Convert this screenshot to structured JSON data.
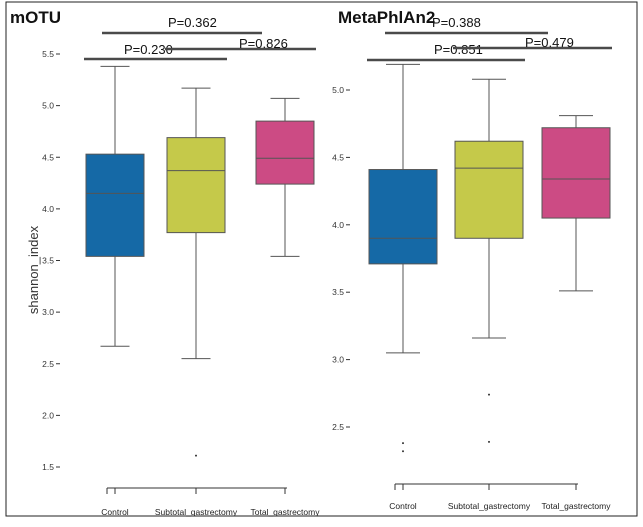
{
  "colors": {
    "control": "#1569a6",
    "subtotal": "#c5c94a",
    "total": "#cc4b84",
    "whisker": "#555555",
    "bracket": "#4a4a4a",
    "frame": "#222222"
  },
  "chart_data": [
    {
      "type": "box",
      "panel_title": "mOTU",
      "ylabel": "shannon_index",
      "ylim": [
        1.5,
        5.5
      ],
      "yticks": [
        "1.5",
        "2.0",
        "2.5",
        "3.0",
        "3.5",
        "4.0",
        "4.5",
        "5.0",
        "5.5"
      ],
      "categories": [
        "Control",
        "Subtotal_gastrectomy",
        "Total_gastrectomy"
      ],
      "boxes": [
        {
          "name": "Control",
          "min": 2.67,
          "q1": 3.54,
          "median": 4.15,
          "q3": 4.53,
          "max": 5.38,
          "outliers": []
        },
        {
          "name": "Subtotal_gastrectomy",
          "min": 2.55,
          "q1": 3.77,
          "median": 4.37,
          "q3": 4.69,
          "max": 5.17,
          "outliers": [
            1.61
          ]
        },
        {
          "name": "Total_gastrectomy",
          "min": 3.54,
          "q1": 4.24,
          "median": 4.49,
          "q3": 4.85,
          "max": 5.07,
          "outliers": []
        }
      ],
      "comparisons": [
        {
          "groups": [
            "Control",
            "Total_gastrectomy"
          ],
          "label": "P=0.362"
        },
        {
          "groups": [
            "Control",
            "Subtotal_gastrectomy"
          ],
          "label": "P=0.230"
        },
        {
          "groups": [
            "Subtotal_gastrectomy",
            "Total_gastrectomy"
          ],
          "label": "P=0.826"
        }
      ]
    },
    {
      "type": "box",
      "panel_title": "MetaPhlAn2",
      "ylabel": "",
      "ylim": [
        2.3,
        5.1
      ],
      "yticks": [
        "2.5",
        "3.0",
        "3.5",
        "4.0",
        "4.5",
        "5.0"
      ],
      "categories": [
        "Control",
        "Subtotal_gastrectomy",
        "Total_gastrectomy"
      ],
      "boxes": [
        {
          "name": "Control",
          "min": 3.05,
          "q1": 3.71,
          "median": 3.9,
          "q3": 4.41,
          "max": 5.19,
          "outliers": [
            2.38,
            2.32
          ]
        },
        {
          "name": "Subtotal_gastrectomy",
          "min": 3.16,
          "q1": 3.9,
          "median": 4.42,
          "q3": 4.62,
          "max": 5.08,
          "outliers": [
            2.74,
            2.39
          ]
        },
        {
          "name": "Total_gastrectomy",
          "min": 3.51,
          "q1": 4.05,
          "median": 4.34,
          "q3": 4.72,
          "max": 4.81,
          "outliers": []
        }
      ],
      "comparisons": [
        {
          "groups": [
            "Control",
            "Total_gastrectomy"
          ],
          "label": "P=0.388"
        },
        {
          "groups": [
            "Control",
            "Subtotal_gastrectomy"
          ],
          "label": "P=0.851"
        },
        {
          "groups": [
            "Subtotal_gastrectomy",
            "Total_gastrectomy"
          ],
          "label": "P=0.479"
        }
      ]
    }
  ]
}
